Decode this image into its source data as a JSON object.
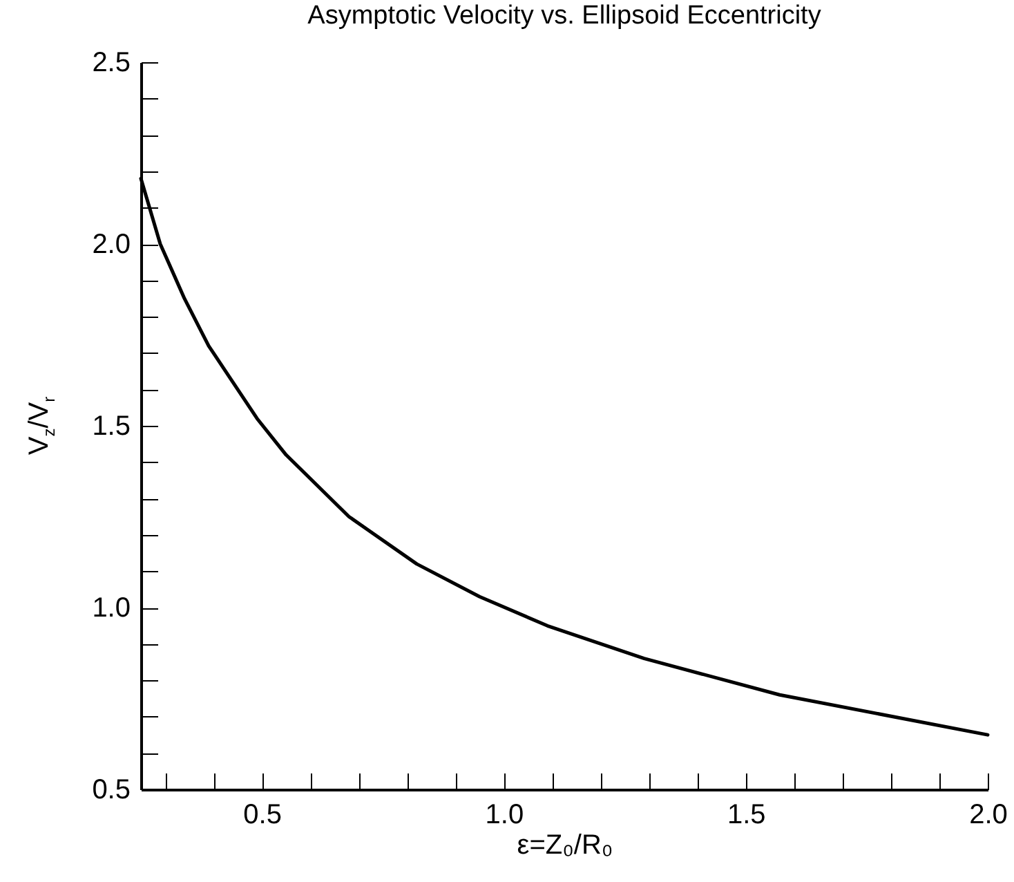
{
  "chart_data": {
    "type": "line",
    "title": "Asymptotic Velocity vs. Ellipsoid Eccentricity",
    "xlabel": "ε=Z₀/R₀",
    "ylabel": "V$_{z}$/V$_{r}$",
    "x": [
      0.25,
      0.29,
      0.34,
      0.39,
      0.44,
      0.49,
      0.55,
      0.68,
      0.82,
      0.95,
      1.09,
      1.29,
      1.57,
      2.0
    ],
    "series": [
      {
        "color": "#000000",
        "values": [
          2.18,
          2.0,
          1.85,
          1.72,
          1.62,
          1.52,
          1.42,
          1.25,
          1.12,
          1.03,
          0.95,
          0.86,
          0.76,
          0.65
        ]
      }
    ],
    "xlim": [
      0.25,
      2.0
    ],
    "xticks": [
      {
        "value": 0.3,
        "label": null
      },
      {
        "value": 0.4,
        "label": null
      },
      0.5,
      {
        "value": 0.6,
        "label": null
      },
      {
        "value": 0.7,
        "label": null
      },
      {
        "value": 0.8,
        "label": null
      },
      {
        "value": 0.9,
        "label": null
      },
      {
        "value": 1,
        "label": "1.0"
      },
      {
        "value": 1.1,
        "label": null
      },
      {
        "value": 1.2,
        "label": null
      },
      {
        "value": 1.3,
        "label": null
      },
      {
        "value": 1.4,
        "label": null
      },
      1.5,
      {
        "value": 1.6,
        "label": null
      },
      {
        "value": 1.7,
        "label": null
      },
      {
        "value": 1.8,
        "label": null
      },
      {
        "value": 1.9,
        "label": null
      },
      {
        "value": 2,
        "label": "2.0"
      }
    ],
    "ylim": [
      0.5,
      2.5
    ],
    "yticks": [
      0.5,
      {
        "value": 0.6,
        "label": null
      },
      {
        "value": 0.7,
        "label": null
      },
      {
        "value": 0.8,
        "label": null
      },
      {
        "value": 0.9,
        "label": null
      },
      {
        "value": 1,
        "label": "1.0"
      },
      {
        "value": 1.1,
        "label": null
      },
      {
        "value": 1.2,
        "label": null
      },
      {
        "value": 1.3,
        "label": null
      },
      {
        "value": 1.4,
        "label": null
      },
      1.5,
      {
        "value": 1.6,
        "label": null
      },
      {
        "value": 1.7,
        "label": null
      },
      {
        "value": 1.8,
        "label": null
      },
      {
        "value": 1.9,
        "label": null
      },
      {
        "value": 2,
        "label": "2.0"
      },
      {
        "value": 2.1,
        "label": null
      },
      {
        "value": 2.2,
        "label": null
      },
      {
        "value": 2.3,
        "label": null
      },
      {
        "value": 2.4,
        "label": null
      },
      2.5
    ],
    "grid": false,
    "marker": "none",
    "line_style": "solid"
  }
}
